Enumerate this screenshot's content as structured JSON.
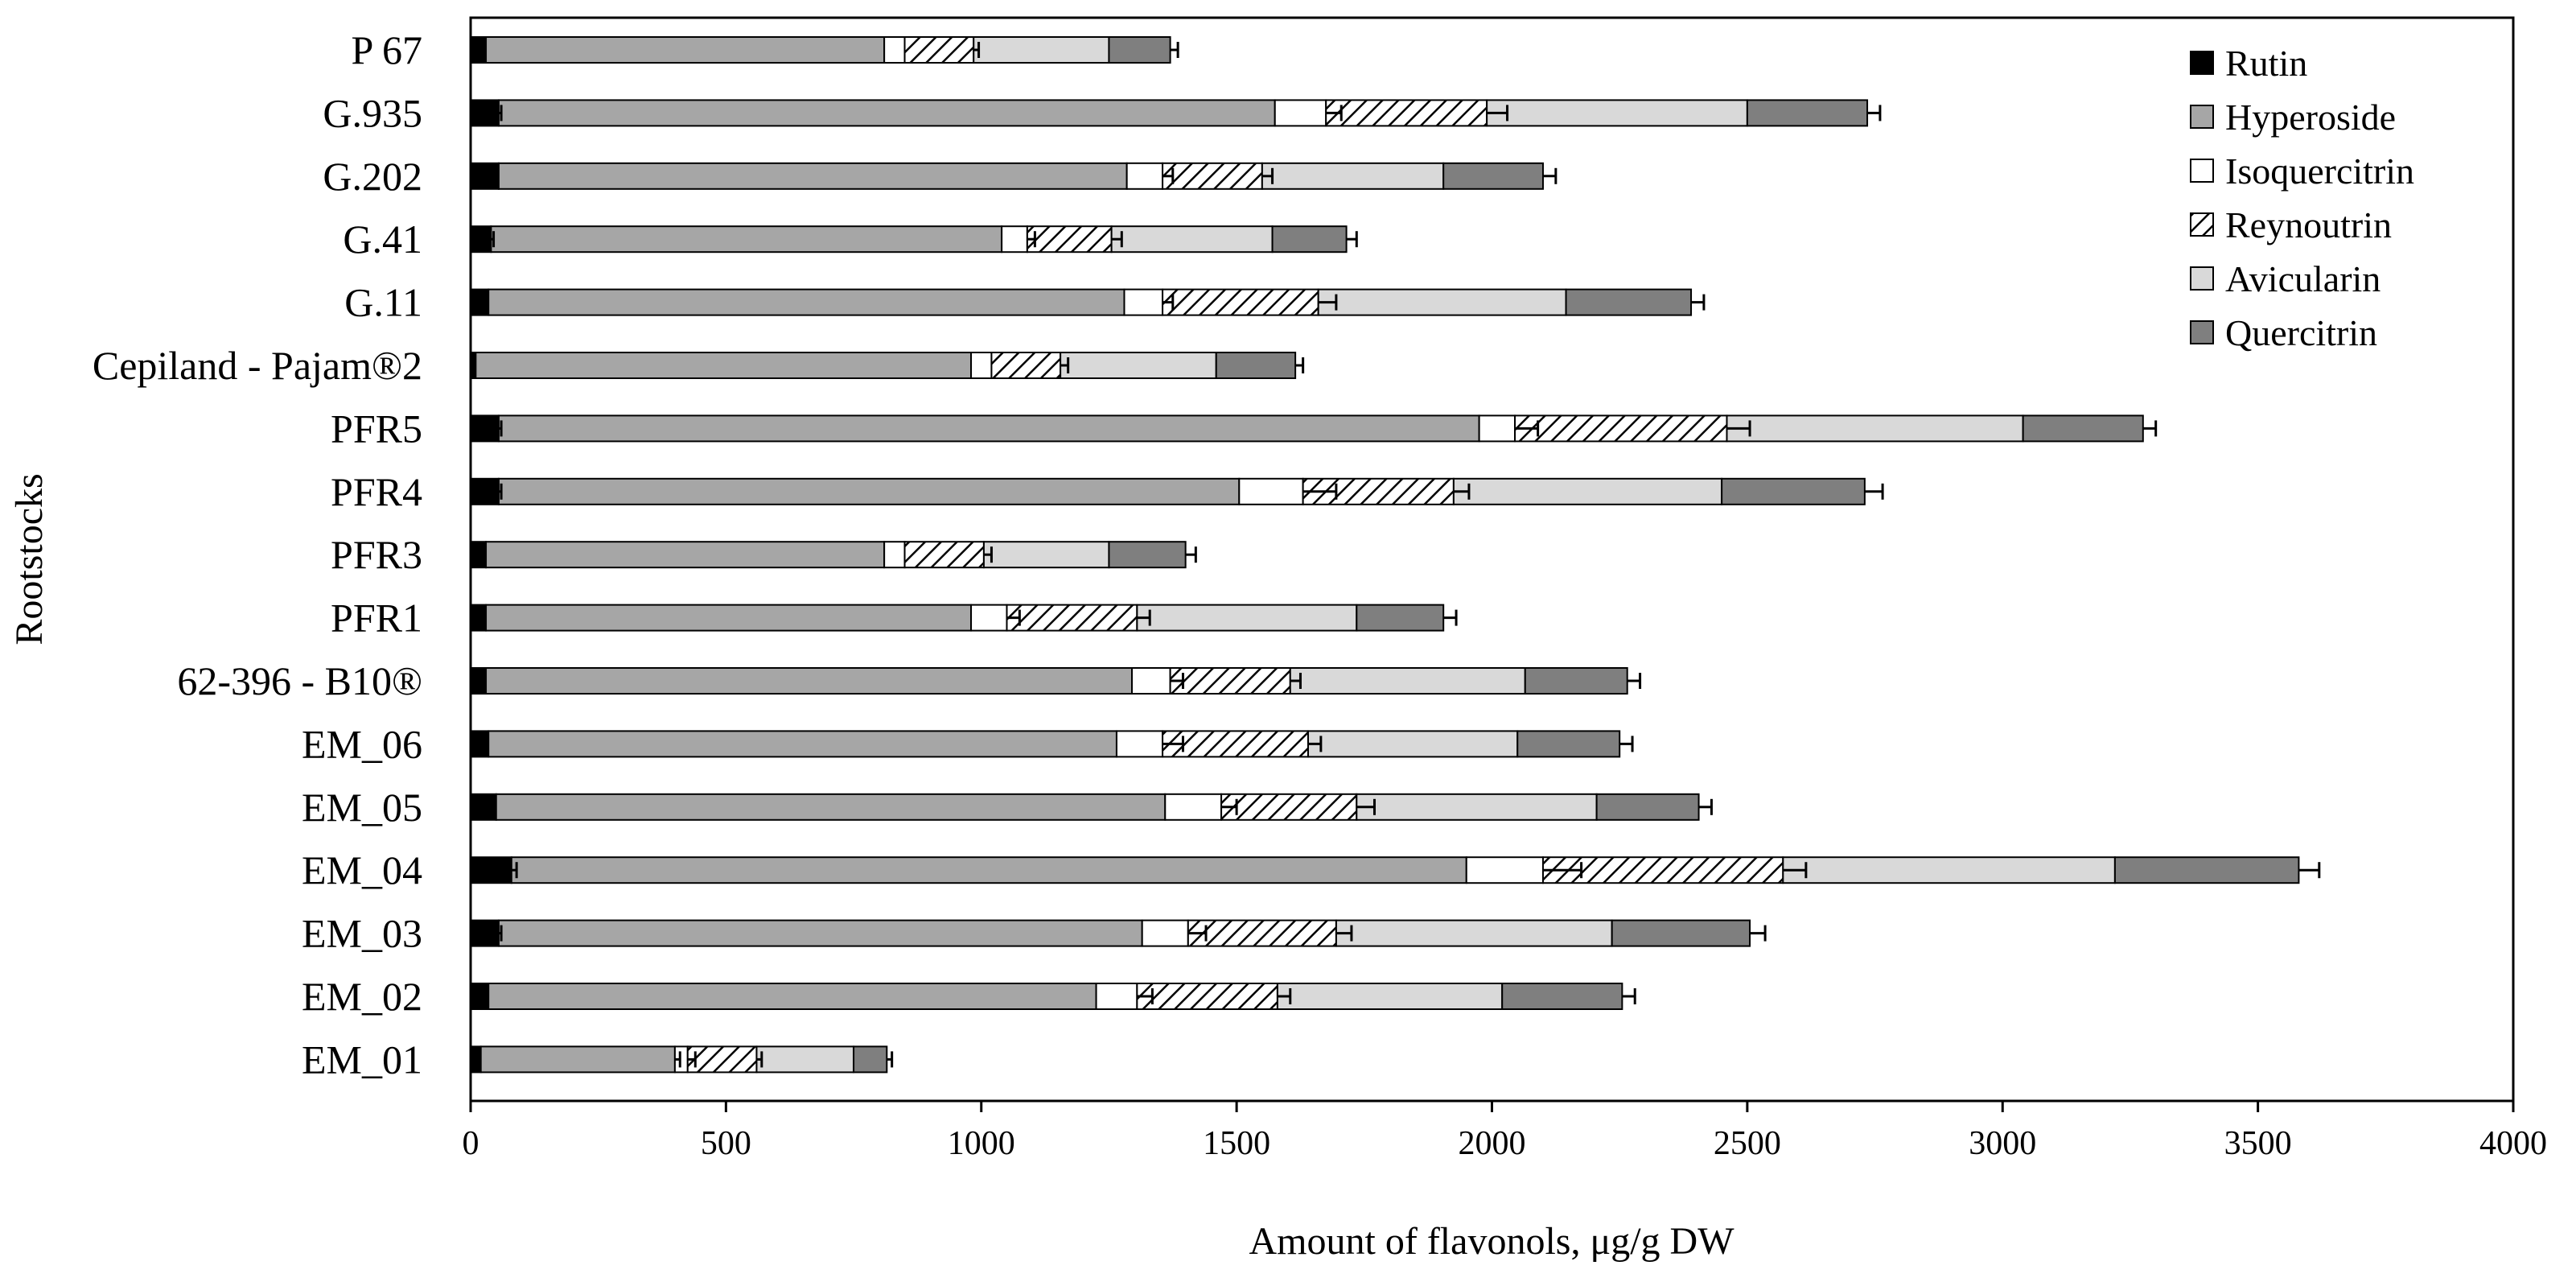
{
  "chart_data": {
    "type": "bar",
    "orientation": "horizontal",
    "stacked": true,
    "title": "",
    "xlabel": "Amount of flavonols, μg/g DW",
    "ylabel": "Rootstocks",
    "xlim": [
      0,
      4000
    ],
    "xticks": [
      0,
      500,
      1000,
      1500,
      2000,
      2500,
      3000,
      3500,
      4000
    ],
    "grid": false,
    "legend_position": "top-right",
    "categories": [
      "P 67",
      "G.935",
      "G.202",
      "G.41",
      "G.11",
      "Cepiland - Pajam®2",
      "PFR5",
      "PFR4",
      "PFR3",
      "PFR1",
      "62-396 - B10®",
      "EM_06",
      "EM_05",
      "EM_04",
      "EM_03",
      "EM_02",
      "EM_01"
    ],
    "series": [
      {
        "name": "Rutin",
        "fill": "black",
        "values": [
          30,
          55,
          55,
          40,
          35,
          10,
          55,
          55,
          30,
          30,
          30,
          35,
          50,
          80,
          55,
          35,
          20
        ],
        "errors": [
          0,
          5,
          0,
          5,
          0,
          0,
          5,
          5,
          0,
          0,
          0,
          0,
          0,
          10,
          5,
          0,
          0
        ]
      },
      {
        "name": "Hyperoside",
        "fill": "mediumgray",
        "values": [
          780,
          1520,
          1230,
          1000,
          1245,
          970,
          1920,
          1450,
          780,
          950,
          1265,
          1230,
          1310,
          1870,
          1260,
          1190,
          380
        ],
        "errors": [
          0,
          0,
          0,
          0,
          0,
          0,
          0,
          0,
          0,
          0,
          0,
          0,
          0,
          0,
          0,
          0,
          10
        ]
      },
      {
        "name": "Isoquercitrin",
        "fill": "white",
        "values": [
          40,
          100,
          70,
          50,
          75,
          40,
          70,
          125,
          40,
          70,
          75,
          90,
          110,
          150,
          90,
          80,
          25
        ],
        "errors": [
          0,
          30,
          20,
          15,
          20,
          0,
          45,
          65,
          0,
          25,
          25,
          40,
          30,
          75,
          35,
          30,
          15
        ]
      },
      {
        "name": "Reynoutrin",
        "fill": "hatched",
        "values": [
          135,
          315,
          195,
          165,
          305,
          135,
          415,
          295,
          155,
          255,
          235,
          285,
          265,
          470,
          290,
          275,
          135
        ],
        "errors": [
          10,
          40,
          20,
          20,
          35,
          15,
          45,
          30,
          15,
          25,
          20,
          25,
          35,
          45,
          30,
          25,
          10
        ]
      },
      {
        "name": "Avicularin",
        "fill": "lightgray",
        "values": [
          265,
          510,
          355,
          315,
          485,
          305,
          580,
          525,
          245,
          430,
          460,
          410,
          470,
          650,
          540,
          440,
          190
        ],
        "errors": [
          0,
          0,
          0,
          0,
          0,
          0,
          0,
          0,
          0,
          0,
          0,
          0,
          0,
          0,
          0,
          0,
          0
        ]
      },
      {
        "name": "Quercitrin",
        "fill": "darkgray",
        "values": [
          120,
          235,
          195,
          145,
          245,
          155,
          235,
          280,
          150,
          170,
          200,
          200,
          200,
          360,
          270,
          235,
          65
        ],
        "errors": [
          15,
          25,
          25,
          20,
          25,
          15,
          25,
          35,
          20,
          25,
          25,
          25,
          25,
          40,
          30,
          25,
          10
        ]
      }
    ]
  }
}
